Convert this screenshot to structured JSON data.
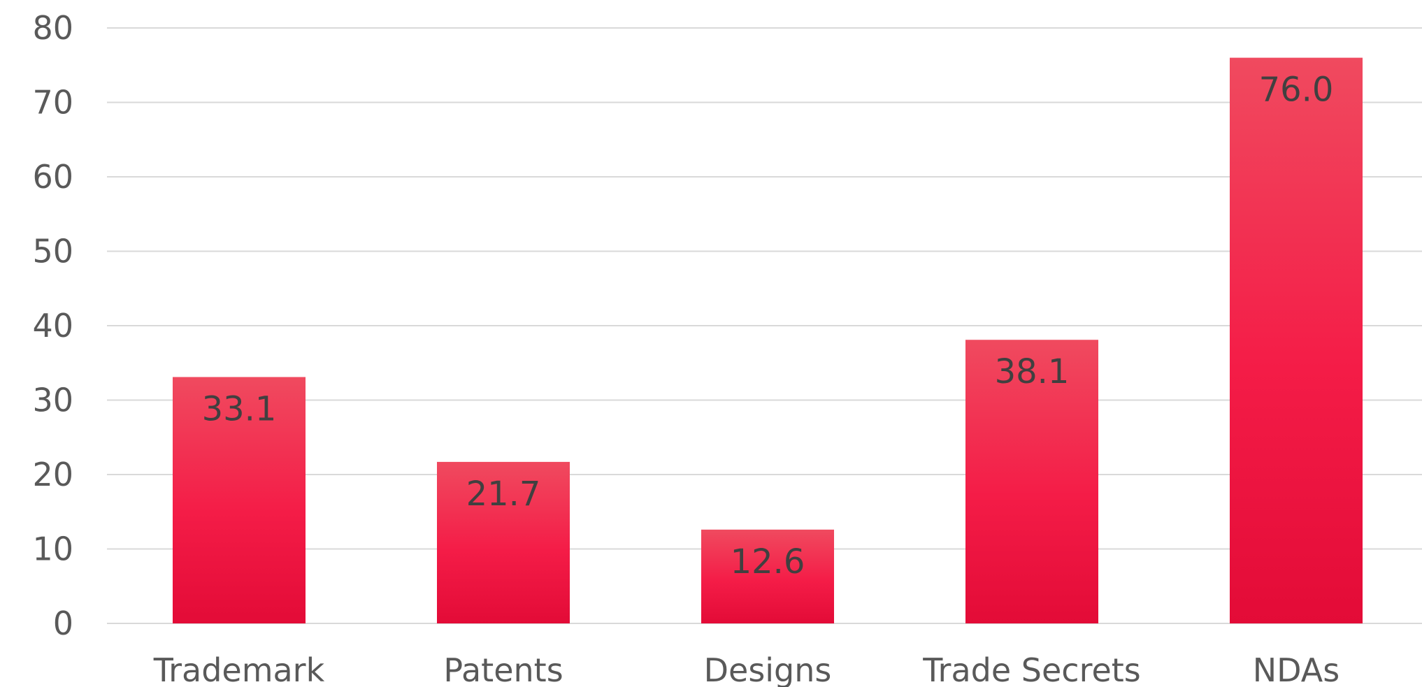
{
  "chart_data": {
    "type": "bar",
    "categories": [
      "Trademark",
      "Patents",
      "Designs",
      "Trade Secrets",
      "NDAs"
    ],
    "values": [
      33.1,
      21.7,
      12.6,
      38.1,
      76.0
    ],
    "data_labels": [
      "33.1",
      "21.7",
      "12.6",
      "38.1",
      "76.0"
    ],
    "ylim": [
      0,
      80
    ],
    "yticks": [
      "0",
      "10",
      "20",
      "30",
      "40",
      "50",
      "60",
      "70",
      "80"
    ],
    "grid": true,
    "legend": "none",
    "bar_color_top": "#f04a5f",
    "bar_color_mid": "#f41c47",
    "bar_color_bottom": "#e30b37"
  }
}
